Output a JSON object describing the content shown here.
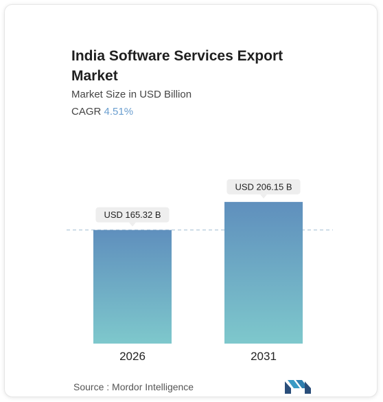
{
  "header": {
    "title": "India Software Services Export Market",
    "subtitle": "Market Size in USD Billion",
    "cagr_label": "CAGR",
    "cagr_value": "4.51%"
  },
  "footer": {
    "source_text": "Source :  Mordor Intelligence",
    "logo_icon": "mordor-intelligence-logo-icon"
  },
  "colors": {
    "bar_top": "#5f8fbd",
    "bar_bottom": "#7ec8cc",
    "label_bg": "#eeeeee",
    "dashed_line": "#a9c4d8",
    "cagr_accent": "#6a9ecf"
  },
  "chart_data": {
    "type": "bar",
    "categories": [
      "2026",
      "2031"
    ],
    "values": [
      165.32,
      206.15
    ],
    "data_labels": [
      "USD 165.32 B",
      "USD 206.15 B"
    ],
    "title": "India Software Services Export Market",
    "subtitle": "Market Size in USD Billion",
    "grid": false,
    "reference_line": {
      "value": 165.32,
      "style": "dashed"
    }
  }
}
